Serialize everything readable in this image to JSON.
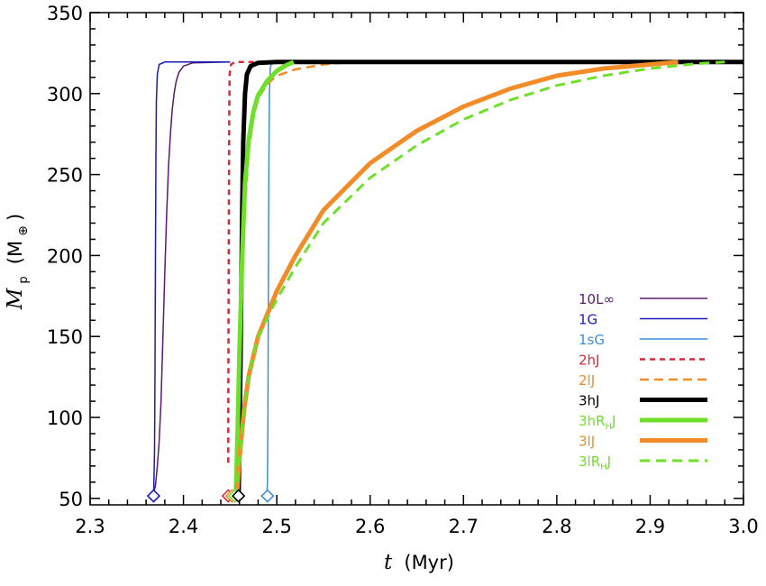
{
  "chart_data": {
    "type": "line",
    "title": "",
    "xlabel": {
      "symbol": "t",
      "unit": "(Myr)"
    },
    "ylabel": {
      "symbol": "M",
      "subscript": "p",
      "unit_open": "(M",
      "unit_sub": "⊕",
      "unit_close": ")"
    },
    "xlim": [
      2.3,
      3.0
    ],
    "ylim": [
      46,
      350
    ],
    "xticks": [
      2.3,
      2.4,
      2.5,
      2.6,
      2.7,
      2.8,
      2.9,
      3.0
    ],
    "xtick_labels": [
      "2.3",
      "2.4",
      "2.5",
      "2.6",
      "2.7",
      "2.8",
      "2.9",
      "3.0"
    ],
    "yticks": [
      50,
      100,
      150,
      200,
      250,
      300,
      350
    ],
    "ytick_labels": [
      "50",
      "100",
      "150",
      "200",
      "250",
      "300",
      "350"
    ],
    "legend_position": "bottom-right",
    "series": [
      {
        "name": "10L∞",
        "label_main": "10L∞",
        "label_sub": "",
        "label_tail": "",
        "color": "#5a1a6e",
        "width": 1.5,
        "dash": "",
        "points": [
          [
            2.367,
            50
          ],
          [
            2.368,
            53
          ],
          [
            2.37,
            58
          ],
          [
            2.372,
            70
          ],
          [
            2.374,
            85
          ],
          [
            2.376,
            110
          ],
          [
            2.378,
            150
          ],
          [
            2.38,
            190
          ],
          [
            2.382,
            225
          ],
          [
            2.384,
            255
          ],
          [
            2.386,
            275
          ],
          [
            2.388,
            290
          ],
          [
            2.39,
            300
          ],
          [
            2.392,
            307
          ],
          [
            2.395,
            313
          ],
          [
            2.4,
            317
          ],
          [
            2.41,
            319
          ],
          [
            2.45,
            319.5
          ]
        ]
      },
      {
        "name": "1G",
        "label_main": "1G",
        "label_sub": "",
        "label_tail": "",
        "color": "#1a1ab8",
        "width": 1.5,
        "dash": "",
        "points": [
          [
            2.368,
            50
          ],
          [
            2.369,
            80
          ],
          [
            2.3695,
            130
          ],
          [
            2.37,
            200
          ],
          [
            2.3705,
            260
          ],
          [
            2.371,
            295
          ],
          [
            2.372,
            312
          ],
          [
            2.374,
            318
          ],
          [
            2.38,
            319.5
          ],
          [
            2.45,
            319.5
          ]
        ]
      },
      {
        "name": "1sG",
        "label_main": "1sG",
        "label_sub": "",
        "label_tail": "",
        "color": "#3a8fd8",
        "width": 1.5,
        "dash": "",
        "points": [
          [
            2.489,
            50
          ],
          [
            2.49,
            60
          ],
          [
            2.4905,
            100
          ],
          [
            2.491,
            180
          ],
          [
            2.4915,
            250
          ],
          [
            2.492,
            300
          ],
          [
            2.493,
            316
          ],
          [
            2.495,
            319.5
          ],
          [
            2.51,
            319.5
          ]
        ]
      },
      {
        "name": "2hJ",
        "label_main": "2hJ",
        "label_sub": "",
        "label_tail": "",
        "color": "#d8283a",
        "width": 2.5,
        "dash": "6,5",
        "points": [
          [
            2.448,
            72
          ],
          [
            2.448,
            100
          ],
          [
            2.4485,
            200
          ],
          [
            2.449,
            280
          ],
          [
            2.4495,
            312
          ],
          [
            2.451,
            318
          ],
          [
            2.455,
            319.5
          ],
          [
            2.48,
            319.5
          ]
        ]
      },
      {
        "name": "2lJ",
        "label_main": "2lJ",
        "label_sub": "",
        "label_tail": "",
        "color": "#f28c28",
        "width": 2.5,
        "dash": "10,6",
        "points": [
          [
            2.455,
            50
          ],
          [
            2.457,
            80
          ],
          [
            2.46,
            120
          ],
          [
            2.463,
            180
          ],
          [
            2.466,
            230
          ],
          [
            2.47,
            265
          ],
          [
            2.475,
            285
          ],
          [
            2.48,
            297
          ],
          [
            2.49,
            306
          ],
          [
            2.5,
            311
          ],
          [
            2.52,
            315
          ],
          [
            2.55,
            318
          ],
          [
            2.58,
            319.5
          ],
          [
            2.65,
            319.5
          ]
        ]
      },
      {
        "name": "3hJ",
        "label_main": "3hJ",
        "label_sub": "",
        "label_tail": "",
        "color": "#000000",
        "width": 5,
        "dash": "",
        "points": [
          [
            2.459,
            50
          ],
          [
            2.46,
            80
          ],
          [
            2.461,
            130
          ],
          [
            2.462,
            180
          ],
          [
            2.463,
            230
          ],
          [
            2.464,
            270
          ],
          [
            2.466,
            300
          ],
          [
            2.468,
            312
          ],
          [
            2.472,
            317
          ],
          [
            2.48,
            319
          ],
          [
            2.5,
            319.5
          ],
          [
            3.0,
            319.5
          ]
        ]
      },
      {
        "name": "3hRHJ",
        "label_main": "3hR",
        "label_sub": "H",
        "label_tail": "J",
        "color": "#6ee02a",
        "width": 5,
        "dash": "",
        "points": [
          [
            2.456,
            50
          ],
          [
            2.458,
            90
          ],
          [
            2.46,
            140
          ],
          [
            2.463,
            200
          ],
          [
            2.466,
            245
          ],
          [
            2.47,
            272
          ],
          [
            2.475,
            289
          ],
          [
            2.48,
            299
          ],
          [
            2.49,
            308
          ],
          [
            2.5,
            314
          ],
          [
            2.51,
            317.5
          ],
          [
            2.518,
            319.5
          ]
        ]
      },
      {
        "name": "3lJ",
        "label_main": "3lJ",
        "label_sub": "",
        "label_tail": "",
        "color": "#f28c28",
        "width": 5,
        "dash": "",
        "points": [
          [
            2.457,
            50
          ],
          [
            2.46,
            75
          ],
          [
            2.465,
            105
          ],
          [
            2.47,
            126
          ],
          [
            2.48,
            150
          ],
          [
            2.5,
            178
          ],
          [
            2.52,
            200
          ],
          [
            2.55,
            228
          ],
          [
            2.6,
            257
          ],
          [
            2.65,
            277
          ],
          [
            2.7,
            292
          ],
          [
            2.75,
            303
          ],
          [
            2.8,
            311
          ],
          [
            2.85,
            315.5
          ],
          [
            2.9,
            318
          ],
          [
            2.93,
            319.5
          ]
        ]
      },
      {
        "name": "3lRHJ",
        "label_main": "3lR",
        "label_sub": "H",
        "label_tail": "J",
        "color": "#6ee02a",
        "width": 3,
        "dash": "11,7",
        "points": [
          [
            2.456,
            50
          ],
          [
            2.46,
            75
          ],
          [
            2.465,
            105
          ],
          [
            2.47,
            127
          ],
          [
            2.48,
            150
          ],
          [
            2.5,
            173
          ],
          [
            2.52,
            193
          ],
          [
            2.55,
            220
          ],
          [
            2.6,
            248
          ],
          [
            2.65,
            268
          ],
          [
            2.7,
            284
          ],
          [
            2.75,
            296
          ],
          [
            2.8,
            305
          ],
          [
            2.85,
            311
          ],
          [
            2.9,
            315.5
          ],
          [
            2.95,
            318.5
          ],
          [
            2.98,
            319.5
          ]
        ]
      }
    ],
    "markers": [
      {
        "x": 2.368,
        "y": 51.5,
        "color": "#1a1ab8"
      },
      {
        "x": 2.448,
        "y": 51.5,
        "color": "#d8283a"
      },
      {
        "x": 2.452,
        "y": 51.5,
        "color": "#f28c28"
      },
      {
        "x": 2.455,
        "y": 51.5,
        "color": "#6ee02a"
      },
      {
        "x": 2.459,
        "y": 51.5,
        "color": "#000000"
      },
      {
        "x": 2.49,
        "y": 51.5,
        "color": "#3a8fd8"
      }
    ]
  }
}
